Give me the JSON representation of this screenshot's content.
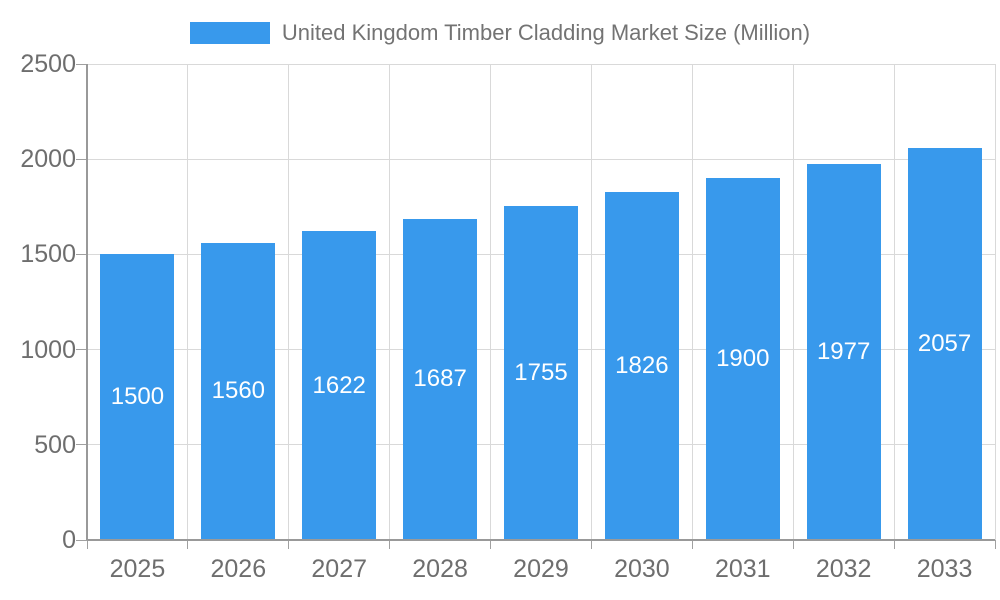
{
  "legend": {
    "label": "United Kingdom Timber Cladding Market Size (Million)",
    "swatch_color": "#3899ec"
  },
  "chart_data": {
    "type": "bar",
    "title": "United Kingdom Timber Cladding Market Size (Million)",
    "categories": [
      "2025",
      "2026",
      "2027",
      "2028",
      "2029",
      "2030",
      "2031",
      "2032",
      "2033"
    ],
    "series": [
      {
        "name": "United Kingdom Timber Cladding Market Size (Million)",
        "values": [
          1500,
          1560,
          1622,
          1687,
          1755,
          1826,
          1900,
          1977,
          2057
        ]
      }
    ],
    "bar_labels": [
      "1500",
      "1560",
      "1622",
      "1687",
      "1755",
      "1826",
      "1900",
      "1977",
      "2057"
    ],
    "xlabel": "",
    "ylabel": "",
    "ylim": [
      0,
      2500
    ],
    "yticks": [
      "0",
      "500",
      "1000",
      "1500",
      "2000",
      "2500"
    ],
    "grid": true,
    "legend_position": "top",
    "colors": {
      "bar": "#3899ec",
      "bar_label": "#ffffff",
      "grid": "#d9d9d9",
      "axis": "#999999",
      "tick": "#a0a0a0",
      "axis_text": "#6e6e6e",
      "legend_text": "#737373"
    }
  }
}
